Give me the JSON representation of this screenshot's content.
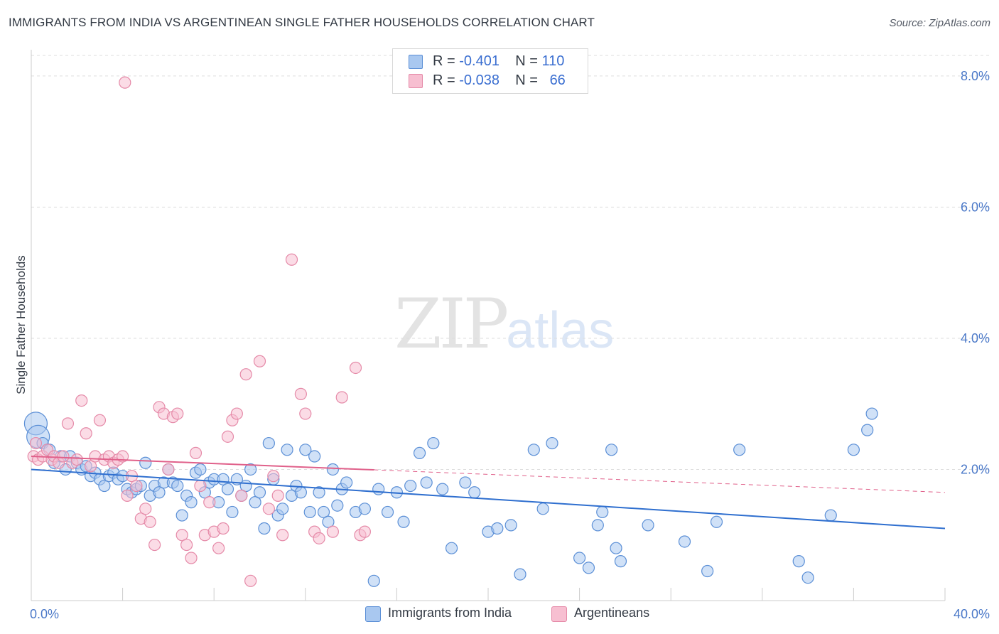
{
  "title": "IMMIGRANTS FROM INDIA VS ARGENTINEAN SINGLE FATHER HOUSEHOLDS CORRELATION CHART",
  "source": "Source: ZipAtlas.com",
  "watermark": {
    "zip": "ZIP",
    "atlas": "atlas"
  },
  "legend": {
    "india": {
      "r_label": "R =",
      "r_value": "-0.401",
      "n_label": "N =",
      "n_value": "110"
    },
    "argentina": {
      "r_label": "R =",
      "r_value": "-0.038",
      "n_label": "N =",
      "n_value": "66"
    }
  },
  "colors": {
    "india_fill": "#a9c8f0",
    "india_stroke": "#5b8fd6",
    "india_line": "#2f6fcf",
    "argentina_fill": "#f7bfd1",
    "argentina_stroke": "#e58aa8",
    "argentina_line": "#e0608a",
    "grid": "#dddddd",
    "tick": "#4a78c8"
  },
  "chart_data": {
    "type": "scatter",
    "xlabel": "",
    "ylabel": "Single Father Households",
    "xlim": [
      0,
      40
    ],
    "ylim": [
      0,
      8.4
    ],
    "x_tick_labels": [
      {
        "value": 0,
        "label": "0.0%"
      },
      {
        "value": 40,
        "label": "40.0%"
      }
    ],
    "y_tick_labels": [
      {
        "value": 2,
        "label": "2.0%"
      },
      {
        "value": 4,
        "label": "4.0%"
      },
      {
        "value": 6,
        "label": "6.0%"
      },
      {
        "value": 8,
        "label": "8.0%"
      }
    ],
    "series": [
      {
        "name": "Immigrants from India",
        "trend": {
          "x": [
            0,
            40
          ],
          "y": [
            2.0,
            1.1
          ],
          "dashed_x": null
        },
        "points": [
          [
            0.2,
            2.7
          ],
          [
            0.3,
            2.5
          ],
          [
            0.5,
            2.4
          ],
          [
            0.8,
            2.3
          ],
          [
            1.0,
            2.1
          ],
          [
            1.3,
            2.2
          ],
          [
            1.5,
            2.0
          ],
          [
            1.7,
            2.2
          ],
          [
            2.0,
            2.1
          ],
          [
            2.2,
            2.0
          ],
          [
            2.4,
            2.05
          ],
          [
            2.6,
            1.9
          ],
          [
            2.8,
            1.95
          ],
          [
            3.0,
            1.85
          ],
          [
            3.2,
            1.75
          ],
          [
            3.4,
            1.9
          ],
          [
            3.6,
            1.95
          ],
          [
            3.8,
            1.85
          ],
          [
            4.0,
            1.9
          ],
          [
            4.2,
            1.7
          ],
          [
            4.4,
            1.65
          ],
          [
            4.6,
            1.7
          ],
          [
            4.8,
            1.75
          ],
          [
            5.0,
            2.1
          ],
          [
            5.2,
            1.6
          ],
          [
            5.4,
            1.75
          ],
          [
            5.6,
            1.65
          ],
          [
            5.8,
            1.8
          ],
          [
            6.0,
            2.0
          ],
          [
            6.2,
            1.8
          ],
          [
            6.4,
            1.75
          ],
          [
            6.6,
            1.3
          ],
          [
            6.8,
            1.6
          ],
          [
            7.0,
            1.5
          ],
          [
            7.2,
            1.95
          ],
          [
            7.4,
            2.0
          ],
          [
            7.6,
            1.65
          ],
          [
            7.8,
            1.8
          ],
          [
            8.0,
            1.85
          ],
          [
            8.2,
            1.5
          ],
          [
            8.4,
            1.85
          ],
          [
            8.6,
            1.7
          ],
          [
            8.8,
            1.35
          ],
          [
            9.0,
            1.85
          ],
          [
            9.2,
            1.6
          ],
          [
            9.4,
            1.75
          ],
          [
            9.6,
            2.0
          ],
          [
            9.8,
            1.5
          ],
          [
            10.0,
            1.65
          ],
          [
            10.2,
            1.1
          ],
          [
            10.4,
            2.4
          ],
          [
            10.6,
            1.85
          ],
          [
            10.8,
            1.3
          ],
          [
            11.0,
            1.4
          ],
          [
            11.2,
            2.3
          ],
          [
            11.4,
            1.6
          ],
          [
            11.6,
            1.75
          ],
          [
            11.8,
            1.65
          ],
          [
            12.0,
            2.3
          ],
          [
            12.2,
            1.35
          ],
          [
            12.4,
            2.2
          ],
          [
            12.6,
            1.65
          ],
          [
            12.8,
            1.35
          ],
          [
            13.0,
            1.2
          ],
          [
            13.2,
            2.0
          ],
          [
            13.4,
            1.45
          ],
          [
            13.6,
            1.7
          ],
          [
            13.8,
            1.8
          ],
          [
            14.2,
            1.35
          ],
          [
            14.6,
            1.4
          ],
          [
            15.0,
            0.3
          ],
          [
            15.2,
            1.7
          ],
          [
            15.6,
            1.35
          ],
          [
            16.0,
            1.65
          ],
          [
            16.3,
            1.2
          ],
          [
            16.6,
            1.75
          ],
          [
            17.0,
            2.25
          ],
          [
            17.3,
            1.8
          ],
          [
            17.6,
            2.4
          ],
          [
            18.0,
            1.7
          ],
          [
            18.4,
            0.8
          ],
          [
            19.0,
            1.8
          ],
          [
            19.4,
            1.65
          ],
          [
            20.0,
            1.05
          ],
          [
            20.4,
            1.1
          ],
          [
            21.0,
            1.15
          ],
          [
            21.4,
            0.4
          ],
          [
            22.0,
            2.3
          ],
          [
            22.4,
            1.4
          ],
          [
            22.8,
            2.4
          ],
          [
            24.0,
            0.65
          ],
          [
            24.4,
            0.5
          ],
          [
            24.8,
            1.15
          ],
          [
            25.0,
            1.35
          ],
          [
            25.4,
            2.3
          ],
          [
            25.6,
            0.8
          ],
          [
            25.8,
            0.6
          ],
          [
            27.0,
            1.15
          ],
          [
            28.6,
            0.9
          ],
          [
            29.6,
            0.45
          ],
          [
            30.0,
            1.2
          ],
          [
            31.0,
            2.3
          ],
          [
            33.6,
            0.6
          ],
          [
            34.0,
            0.35
          ],
          [
            35.0,
            1.3
          ],
          [
            36.0,
            2.3
          ],
          [
            36.6,
            2.6
          ],
          [
            36.8,
            2.85
          ]
        ]
      },
      {
        "name": "Argentineans",
        "trend": {
          "x": [
            0,
            40
          ],
          "y": [
            2.2,
            1.65
          ],
          "dashed_x": [
            15,
            40
          ]
        },
        "points": [
          [
            0.1,
            2.2
          ],
          [
            0.2,
            2.4
          ],
          [
            0.3,
            2.15
          ],
          [
            0.5,
            2.2
          ],
          [
            0.7,
            2.3
          ],
          [
            0.9,
            2.15
          ],
          [
            1.0,
            2.2
          ],
          [
            1.2,
            2.1
          ],
          [
            1.4,
            2.2
          ],
          [
            1.6,
            2.7
          ],
          [
            1.8,
            2.1
          ],
          [
            2.0,
            2.15
          ],
          [
            2.2,
            3.05
          ],
          [
            2.4,
            2.55
          ],
          [
            2.6,
            2.05
          ],
          [
            2.8,
            2.2
          ],
          [
            3.0,
            2.75
          ],
          [
            3.2,
            2.15
          ],
          [
            3.4,
            2.2
          ],
          [
            3.6,
            2.1
          ],
          [
            3.8,
            2.15
          ],
          [
            4.0,
            2.2
          ],
          [
            4.2,
            1.6
          ],
          [
            4.4,
            1.9
          ],
          [
            4.6,
            1.75
          ],
          [
            4.8,
            1.25
          ],
          [
            5.0,
            1.4
          ],
          [
            5.2,
            1.2
          ],
          [
            5.4,
            0.85
          ],
          [
            5.6,
            2.95
          ],
          [
            5.8,
            2.85
          ],
          [
            6.0,
            2.0
          ],
          [
            6.2,
            2.8
          ],
          [
            6.4,
            2.85
          ],
          [
            6.6,
            1.0
          ],
          [
            6.8,
            0.85
          ],
          [
            7.0,
            0.65
          ],
          [
            7.2,
            2.25
          ],
          [
            7.4,
            1.75
          ],
          [
            7.6,
            1.0
          ],
          [
            7.8,
            1.5
          ],
          [
            8.0,
            1.05
          ],
          [
            8.2,
            0.8
          ],
          [
            8.4,
            1.1
          ],
          [
            8.6,
            2.5
          ],
          [
            8.8,
            2.75
          ],
          [
            9.0,
            2.85
          ],
          [
            9.2,
            1.6
          ],
          [
            9.4,
            3.45
          ],
          [
            9.6,
            0.3
          ],
          [
            10.0,
            3.65
          ],
          [
            10.4,
            1.4
          ],
          [
            10.6,
            1.9
          ],
          [
            10.8,
            1.6
          ],
          [
            11.0,
            1.0
          ],
          [
            11.4,
            5.2
          ],
          [
            11.8,
            3.15
          ],
          [
            12.0,
            2.85
          ],
          [
            12.4,
            1.05
          ],
          [
            12.6,
            0.95
          ],
          [
            13.2,
            1.05
          ],
          [
            13.6,
            3.1
          ],
          [
            14.2,
            3.55
          ],
          [
            14.4,
            1.0
          ],
          [
            14.6,
            1.05
          ],
          [
            4.1,
            7.9
          ]
        ]
      }
    ],
    "legend_position": "top-center",
    "grid": true
  }
}
